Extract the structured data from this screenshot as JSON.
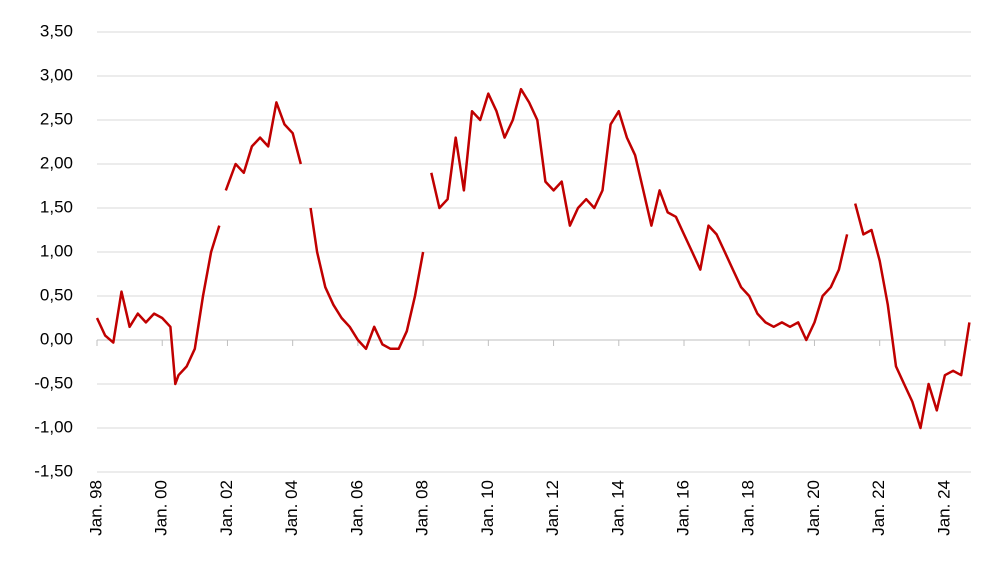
{
  "chart_data": {
    "type": "line",
    "x": [
      1998.0,
      1998.25,
      1998.5,
      1998.75,
      1999.0,
      1999.25,
      1999.5,
      1999.75,
      2000.0,
      2000.25,
      2000.4,
      2000.5,
      2000.75,
      2001.0,
      2001.25,
      2001.5,
      2001.75,
      2001.85,
      2001.95,
      2002.25,
      2002.5,
      2002.75,
      2003.0,
      2003.25,
      2003.5,
      2003.75,
      2004.0,
      2004.25,
      2004.4,
      2004.55,
      2004.75,
      2005.0,
      2005.25,
      2005.5,
      2005.75,
      2006.0,
      2006.25,
      2006.5,
      2006.75,
      2007.0,
      2007.25,
      2007.5,
      2007.75,
      2008.0,
      2008.1,
      2008.25,
      2008.5,
      2008.75,
      2009.0,
      2009.25,
      2009.5,
      2009.75,
      2010.0,
      2010.25,
      2010.5,
      2010.75,
      2011.0,
      2011.25,
      2011.5,
      2011.75,
      2012.0,
      2012.25,
      2012.5,
      2012.75,
      2013.0,
      2013.25,
      2013.5,
      2013.75,
      2014.0,
      2014.25,
      2014.5,
      2014.75,
      2015.0,
      2015.25,
      2015.5,
      2015.75,
      2016.0,
      2016.25,
      2016.5,
      2016.75,
      2017.0,
      2017.25,
      2017.5,
      2017.75,
      2018.0,
      2018.25,
      2018.5,
      2018.75,
      2019.0,
      2019.25,
      2019.5,
      2019.75,
      2020.0,
      2020.25,
      2020.5,
      2020.75,
      2021.0,
      2021.1,
      2021.25,
      2021.5,
      2021.75,
      2022.0,
      2022.25,
      2022.5,
      2022.75,
      2023.0,
      2023.25,
      2023.5,
      2023.75,
      2024.0,
      2024.25,
      2024.5,
      2024.75
    ],
    "series": [
      {
        "color": "#c00000",
        "values": [
          0.25,
          0.05,
          -0.03,
          0.55,
          0.15,
          0.3,
          0.2,
          0.3,
          0.25,
          0.15,
          -0.5,
          -0.4,
          -0.3,
          -0.1,
          0.5,
          1.0,
          1.3,
          null,
          1.7,
          2.0,
          1.9,
          2.2,
          2.3,
          2.2,
          2.7,
          2.45,
          2.35,
          2.0,
          null,
          1.5,
          1.0,
          0.6,
          0.4,
          0.25,
          0.15,
          0.0,
          -0.1,
          0.15,
          -0.05,
          -0.1,
          -0.1,
          0.1,
          0.5,
          1.0,
          null,
          1.9,
          1.5,
          1.6,
          2.3,
          1.7,
          2.6,
          2.5,
          2.8,
          2.6,
          2.3,
          2.5,
          2.85,
          2.7,
          2.5,
          1.8,
          1.7,
          1.8,
          1.3,
          1.5,
          1.6,
          1.5,
          1.7,
          2.45,
          2.6,
          2.3,
          2.1,
          1.7,
          1.3,
          1.7,
          1.45,
          1.4,
          1.2,
          1.0,
          0.8,
          1.3,
          1.2,
          1.0,
          0.8,
          0.6,
          0.5,
          0.3,
          0.2,
          0.15,
          0.2,
          0.15,
          0.2,
          0.0,
          0.2,
          0.5,
          0.6,
          0.8,
          1.2,
          null,
          1.55,
          1.2,
          1.25,
          0.9,
          0.4,
          -0.3,
          -0.5,
          -0.7,
          -1.0,
          -0.5,
          -0.8,
          -0.4,
          -0.35,
          -0.4,
          0.2
        ]
      }
    ],
    "xlim": [
      1998,
      2024.8
    ],
    "xticks": [
      {
        "value": 1998,
        "label": "Jan. 98"
      },
      {
        "value": 2000,
        "label": "Jan. 00"
      },
      {
        "value": 2002,
        "label": "Jan. 02"
      },
      {
        "value": 2004,
        "label": "Jan. 04"
      },
      {
        "value": 2006,
        "label": "Jan. 06"
      },
      {
        "value": 2008,
        "label": "Jan. 08"
      },
      {
        "value": 2010,
        "label": "Jan. 10"
      },
      {
        "value": 2012,
        "label": "Jan. 12"
      },
      {
        "value": 2014,
        "label": "Jan. 14"
      },
      {
        "value": 2016,
        "label": "Jan. 16"
      },
      {
        "value": 2018,
        "label": "Jan. 18"
      },
      {
        "value": 2020,
        "label": "Jan. 20"
      },
      {
        "value": 2022,
        "label": "Jan. 22"
      },
      {
        "value": 2024,
        "label": "Jan. 24"
      }
    ],
    "ylim": [
      -1.5,
      3.5
    ],
    "yticks": [
      {
        "value": -1.5,
        "label": "-1,50"
      },
      {
        "value": -1,
        "label": "-1,00"
      },
      {
        "value": -0.5,
        "label": "-0,50"
      },
      {
        "value": 0,
        "label": "0,00"
      },
      {
        "value": 0.5,
        "label": "0,50"
      },
      {
        "value": 1,
        "label": "1,00"
      },
      {
        "value": 1.5,
        "label": "1,50"
      },
      {
        "value": 2,
        "label": "2,00"
      },
      {
        "value": 2.5,
        "label": "2,50"
      },
      {
        "value": 3,
        "label": "3,00"
      },
      {
        "value": 3.5,
        "label": "3,50"
      }
    ],
    "grid": true
  }
}
